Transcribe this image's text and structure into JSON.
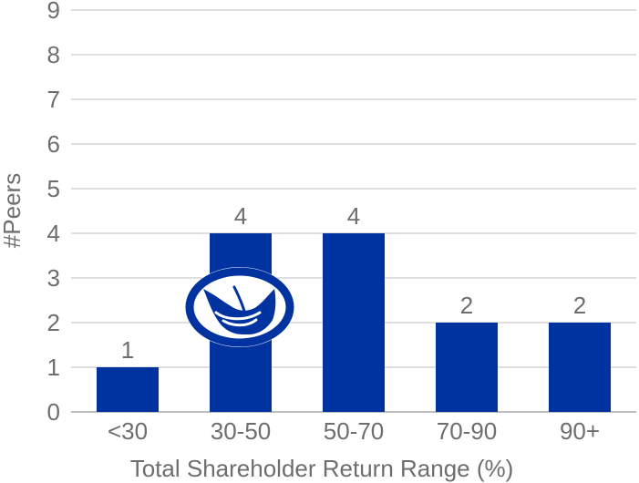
{
  "chart_data": {
    "type": "bar",
    "categories": [
      "<30",
      "30-50",
      "50-70",
      "70-90",
      "90+"
    ],
    "values": [
      1,
      4,
      4,
      2,
      2
    ],
    "data_labels": [
      "1",
      "4",
      "4",
      "2",
      "2"
    ],
    "y_ticks": [
      "0",
      "1",
      "2",
      "3",
      "4",
      "5",
      "6",
      "7",
      "8",
      "9"
    ],
    "xlabel": "Total Shareholder Return Range (%)",
    "ylabel": "#Peers",
    "ylim": [
      0,
      9
    ],
    "grid": true,
    "bar_color": "#0033a0",
    "grid_color": "#bfbfbf",
    "text_color": "#6e6e6e",
    "logo": {
      "icon": "hands-logo-icon",
      "color": "#0033a0",
      "over_category": "30-50"
    }
  }
}
